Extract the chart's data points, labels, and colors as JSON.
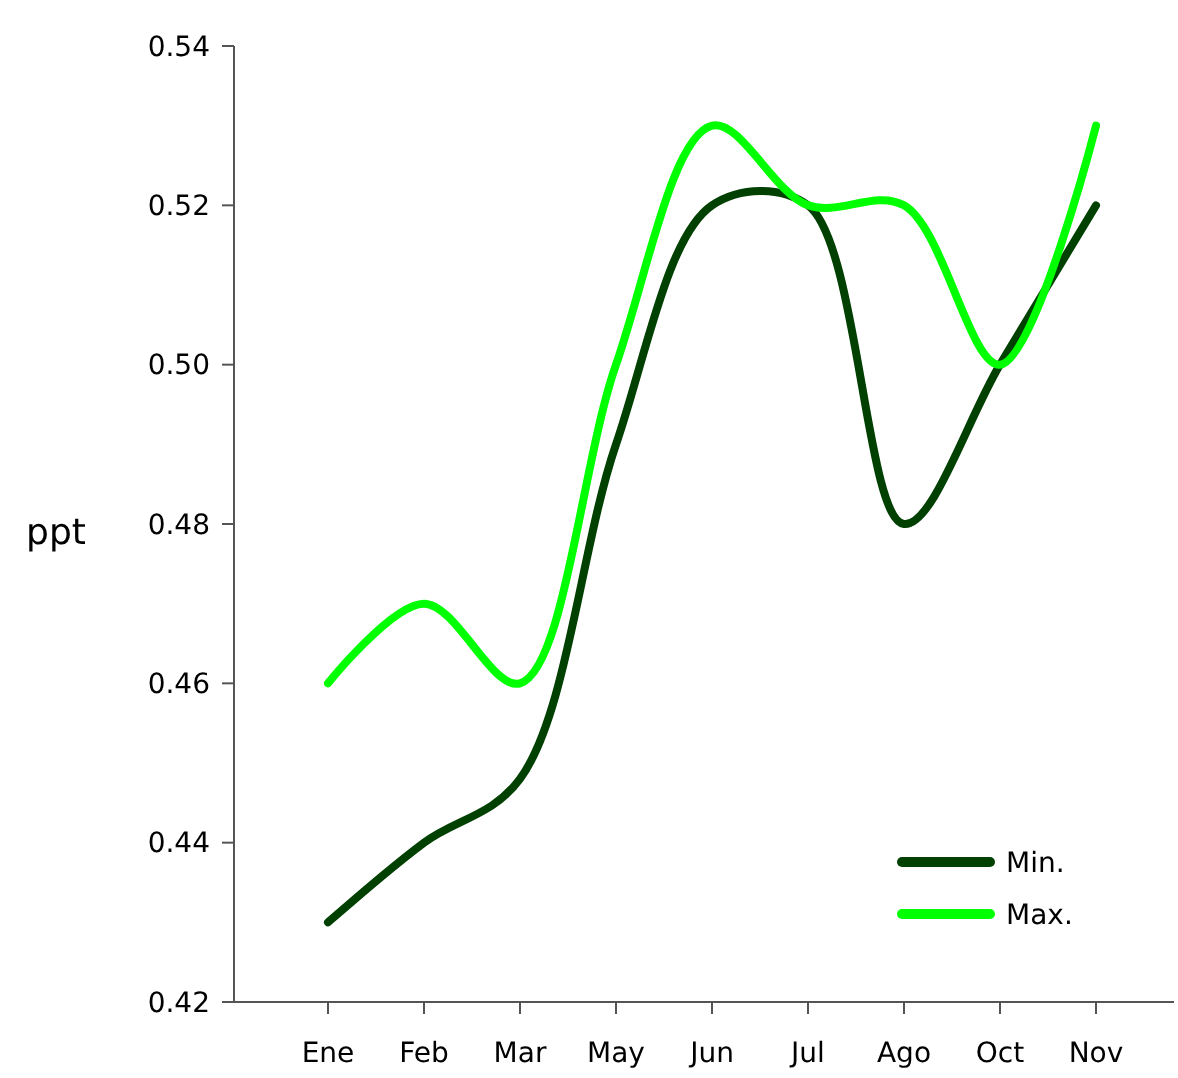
{
  "chart_data": {
    "type": "line",
    "ylabel": "ppt",
    "categories": [
      "Ene",
      "Feb",
      "Mar",
      "May",
      "Jun",
      "Jul",
      "Ago",
      "Oct",
      "Nov"
    ],
    "series": [
      {
        "name": "Min.",
        "color": "#004000",
        "values": [
          0.43,
          0.44,
          0.448,
          0.49,
          0.52,
          0.52,
          0.48,
          0.5,
          0.52
        ]
      },
      {
        "name": "Max.",
        "color": "#00ff00",
        "values": [
          0.46,
          0.47,
          0.46,
          0.5,
          0.53,
          0.52,
          0.52,
          0.5,
          0.53
        ]
      }
    ],
    "ylim": [
      0.42,
      0.54
    ],
    "yticks": [
      {
        "value": 0.42,
        "label": "0.42"
      },
      {
        "value": 0.44,
        "label": "0.44"
      },
      {
        "value": 0.46,
        "label": "0.46"
      },
      {
        "value": 0.48,
        "label": "0.48"
      },
      {
        "value": 0.5,
        "label": "0.50"
      },
      {
        "value": 0.52,
        "label": "0.52"
      },
      {
        "value": 0.54,
        "label": "0.54"
      }
    ],
    "grid": false,
    "legend": "bottom right",
    "marker": "none",
    "line_style": "solid"
  }
}
